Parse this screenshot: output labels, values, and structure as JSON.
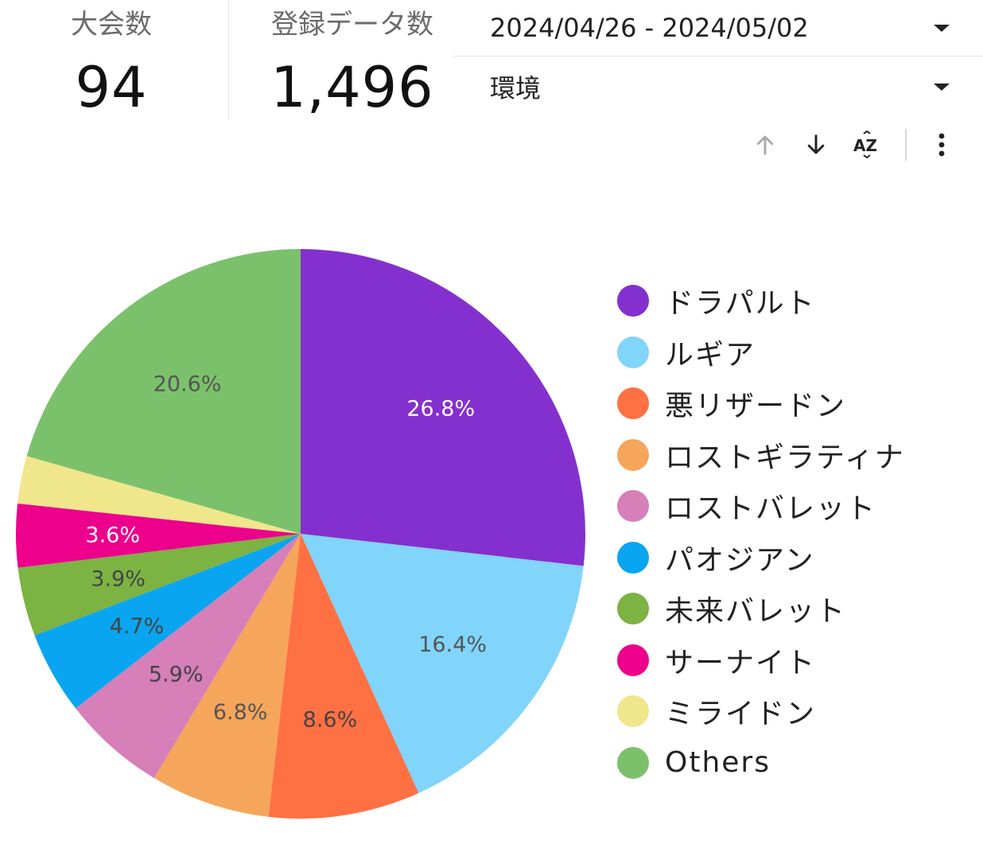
{
  "kpis": [
    {
      "label": "大会数",
      "value": "94"
    },
    {
      "label": "登録データ数",
      "value": "1,496"
    }
  ],
  "filters": {
    "date_range": "2024/04/26 - 2024/05/02",
    "environment": "環境"
  },
  "toolbar": {
    "icons": [
      "arrow-up-icon",
      "arrow-down-icon",
      "sort-az-icon",
      "more-vert-icon"
    ],
    "sort_az_text": "AZ"
  },
  "chart_data": {
    "type": "pie",
    "start_angle": "12 o'clock",
    "direction": "clockwise",
    "slices": [
      {
        "name": "ドラパルト",
        "value": 26.8,
        "label": "26.8%",
        "color": "#8430ce",
        "label_color": "#ffffff"
      },
      {
        "name": "ルギア",
        "value": 16.4,
        "label": "16.4%",
        "color": "#81d4fa",
        "label_color": "#555555"
      },
      {
        "name": "悪リザードン",
        "value": 8.6,
        "label": "8.6%",
        "color": "#ff7043",
        "label_color": "#444444"
      },
      {
        "name": "ロストギラティナ",
        "value": 6.8,
        "label": "6.8%",
        "color": "#f6a65a",
        "label_color": "#555555"
      },
      {
        "name": "ロストバレット",
        "value": 5.9,
        "label": "5.9%",
        "color": "#d67fb8",
        "label_color": "#444444"
      },
      {
        "name": "パオジアン",
        "value": 4.7,
        "label": "4.7%",
        "color": "#0aa5f0",
        "label_color": "#444444"
      },
      {
        "name": "未来バレット",
        "value": 3.9,
        "label": "3.9%",
        "color": "#7cb342",
        "label_color": "#444444"
      },
      {
        "name": "サーナイト",
        "value": 3.6,
        "label": "3.6%",
        "color": "#ec008c",
        "label_color": "#ffffff"
      },
      {
        "name": "ミライドン",
        "value": 2.7,
        "label": "",
        "color": "#f0e68c",
        "label_color": "#444444"
      },
      {
        "name": "Others",
        "value": 20.6,
        "label": "20.6%",
        "color": "#7bc16b",
        "label_color": "#555555"
      }
    ],
    "legend_position": "right"
  }
}
